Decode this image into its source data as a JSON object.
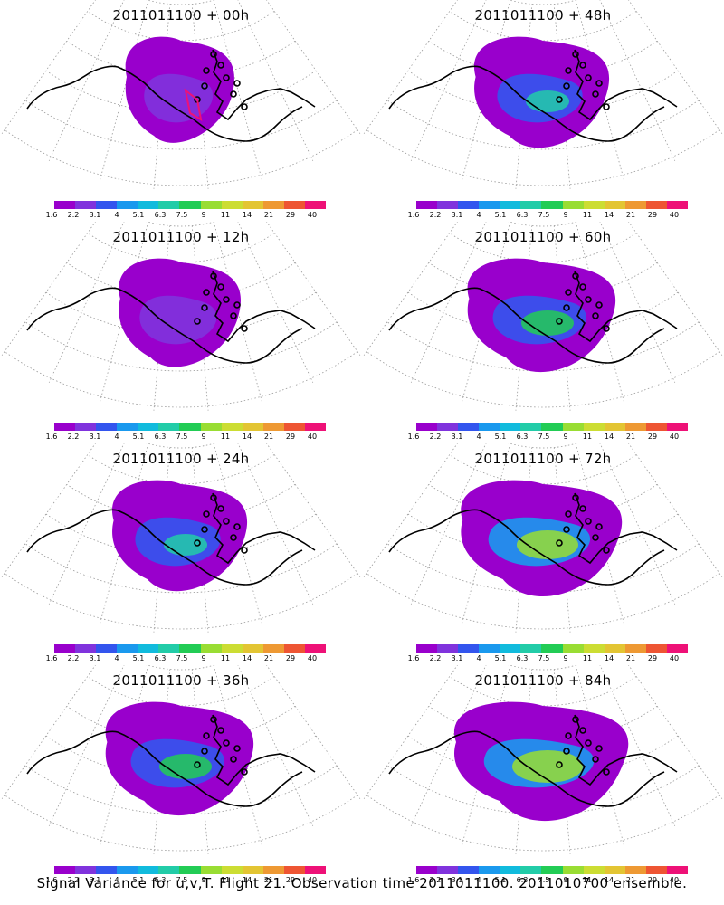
{
  "panels": [
    {
      "title": "2011011100 + 00h",
      "level": 0
    },
    {
      "title": "2011011100 + 48h",
      "level": 2
    },
    {
      "title": "2011011100 + 12h",
      "level": 1
    },
    {
      "title": "2011011100 + 60h",
      "level": 3
    },
    {
      "title": "2011011100 + 24h",
      "level": 2
    },
    {
      "title": "2011011100 + 72h",
      "level": 4
    },
    {
      "title": "2011011100 + 36h",
      "level": 3
    },
    {
      "title": "2011011100 + 84h",
      "level": 5
    }
  ],
  "colorbar": {
    "labels": [
      "1.6",
      "2.2",
      "3.1",
      "4",
      "5.1",
      "6.3",
      "7.5",
      "9",
      "11",
      "14",
      "21",
      "29",
      "40"
    ],
    "colors": [
      "#9900cc",
      "#8033dd",
      "#3355ee",
      "#1a99ee",
      "#11bbdd",
      "#22cca8",
      "#22cc55",
      "#99dd33",
      "#ccdd33",
      "#e3c533",
      "#ee9933",
      "#ee5533",
      "#ee1177"
    ]
  },
  "footer": "Signal Variance for u,v,T. Flight 21. Observation time 2011011100. 2011010700 ensemble."
}
